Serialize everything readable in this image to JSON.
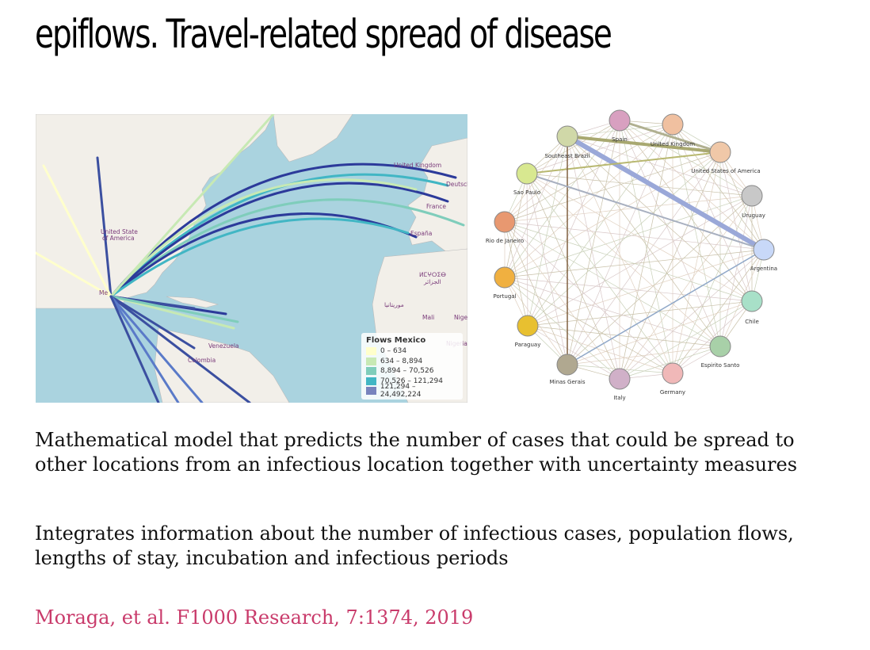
{
  "slide": {
    "title": "epiflows. Travel-related spread of disease",
    "paragraph1": "Mathematical model that predicts the number of cases that could be spread to other locations from an infectious location together with uncertainty measures",
    "paragraph2": "Integrates information about the number of infectious cases, population flows, lengths of stay, incubation and infectious periods",
    "reference": "Moraga, et al. F1000 Research, 7:1374, 2019",
    "reference_color": "#c93b6b"
  },
  "map": {
    "legend_title": "Flows Mexico",
    "legend": [
      {
        "label": "0 – 634",
        "color": "#ffffcc"
      },
      {
        "label": "634 – 8,894",
        "color": "#c7e9b4"
      },
      {
        "label": "8,894 – 70,526",
        "color": "#7fcdbb"
      },
      {
        "label": "70,526 – 121,294",
        "color": "#41b6c4"
      },
      {
        "label": "121,294 – 24,492,224",
        "color": "#253494"
      }
    ],
    "labels": {
      "usa1": "United State",
      "usa2": "of America",
      "mexico": "Me",
      "uk": "United Kingdom",
      "deutschland": "Deutsch",
      "france": "France",
      "espana": "España",
      "morocco1": "ⵍⵎⵖⵔⵉⴱ",
      "morocco2": "الجزائر",
      "mali": "Mali",
      "niger": "Nige",
      "mauritanie": "موريتانيا",
      "venezuela": "Venezuela",
      "colombia": "Colombia",
      "nigeria": "Nigeria"
    }
  },
  "network": {
    "nodes": [
      {
        "name": "Spain",
        "color": "#d8a0c0"
      },
      {
        "name": "United Kingdom",
        "color": "#f0c0a0"
      },
      {
        "name": "United States of America",
        "color": "#f0c8a8"
      },
      {
        "name": "Uruguay",
        "color": "#c8c8c8"
      },
      {
        "name": "Argentina",
        "color": "#c8d8f8"
      },
      {
        "name": "Chile",
        "color": "#a8e0c8"
      },
      {
        "name": "Espirito Santo",
        "color": "#a8d0a8"
      },
      {
        "name": "Germany",
        "color": "#f0b8b8"
      },
      {
        "name": "Italy",
        "color": "#d0b0c8"
      },
      {
        "name": "Minas Gerais",
        "color": "#b0a890"
      },
      {
        "name": "Paraguay",
        "color": "#e8c030"
      },
      {
        "name": "Portugal",
        "color": "#f0b040"
      },
      {
        "name": "Rio de Janeiro",
        "color": "#e89870"
      },
      {
        "name": "Sao Paulo",
        "color": "#d8e890"
      },
      {
        "name": "Southeast Brazil",
        "color": "#d0d8a8"
      }
    ]
  }
}
